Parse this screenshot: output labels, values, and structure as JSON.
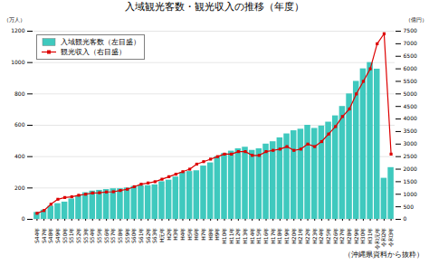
{
  "chart_data": {
    "type": "bar",
    "title": "入域観光客数・観光収入の推移（年度）",
    "ylabel": "（万人）",
    "y2label": "（億円）",
    "annotations": [
      "（沖縄県資料から抜粋）"
    ],
    "categories": [
      "S44年",
      "S47年",
      "S48年",
      "S49年",
      "S50年",
      "S51年",
      "S52年",
      "S53年",
      "S54年",
      "S55年",
      "S56年",
      "S57年",
      "S58年",
      "S59年",
      "S60年",
      "S61年",
      "S62年",
      "S63年",
      "H元年",
      "H2年",
      "H3年",
      "H4年",
      "H5年",
      "H6年",
      "H7年",
      "H8年",
      "H9年",
      "H10年",
      "H11年",
      "H12年",
      "H13年",
      "H14年",
      "H15年",
      "H16年",
      "H17年",
      "H18年",
      "H19年",
      "H20年",
      "H21年",
      "H22年",
      "H23年",
      "H24年",
      "H25年",
      "H26年",
      "H27年",
      "H28年",
      "H29年",
      "H30年",
      "H31年",
      "令和元年",
      "令和2年",
      "令和3年"
    ],
    "series": [
      {
        "name": "入域観光客数（左目盛）",
        "type": "bar",
        "color": "#3fc9be",
        "values": [
          44,
          59,
          84,
          100,
          110,
          130,
          150,
          170,
          180,
          185,
          190,
          195,
          195,
          200,
          210,
          215,
          215,
          220,
          240,
          250,
          270,
          300,
          305,
          310,
          340,
          360,
          400,
          420,
          435,
          450,
          460,
          440,
          450,
          480,
          495,
          520,
          545,
          565,
          575,
          600,
          580,
          595,
          620,
          660,
          720,
          800,
          880,
          960,
          1000,
          958,
          262,
          330
        ]
      },
      {
        "name": "観光収入（右目盛）",
        "type": "line",
        "axis": "y2",
        "color": "#dd0000",
        "marker": "square",
        "values": [
          240,
          350,
          600,
          800,
          870,
          900,
          960,
          1000,
          1050,
          1060,
          1090,
          1100,
          1150,
          1200,
          1300,
          1400,
          1450,
          1500,
          1600,
          1700,
          1800,
          1900,
          2000,
          2200,
          2300,
          2400,
          2500,
          2600,
          2600,
          2700,
          2700,
          2550,
          2550,
          2700,
          2750,
          2800,
          2900,
          2750,
          2800,
          3000,
          2900,
          3100,
          3400,
          3700,
          4100,
          4400,
          5000,
          5500,
          6000,
          7000,
          7400,
          2600
        ]
      }
    ],
    "ylim": [
      0,
      1200
    ],
    "yticks": [
      0,
      200,
      400,
      600,
      800,
      1000,
      1200
    ],
    "y2lim": [
      0,
      7500
    ],
    "y2ticks": [
      0,
      500,
      1000,
      1500,
      2000,
      2500,
      3000,
      3500,
      4000,
      4500,
      5000,
      5500,
      6000,
      6500,
      7000,
      7500
    ],
    "grid": true,
    "legend": "upper left"
  }
}
